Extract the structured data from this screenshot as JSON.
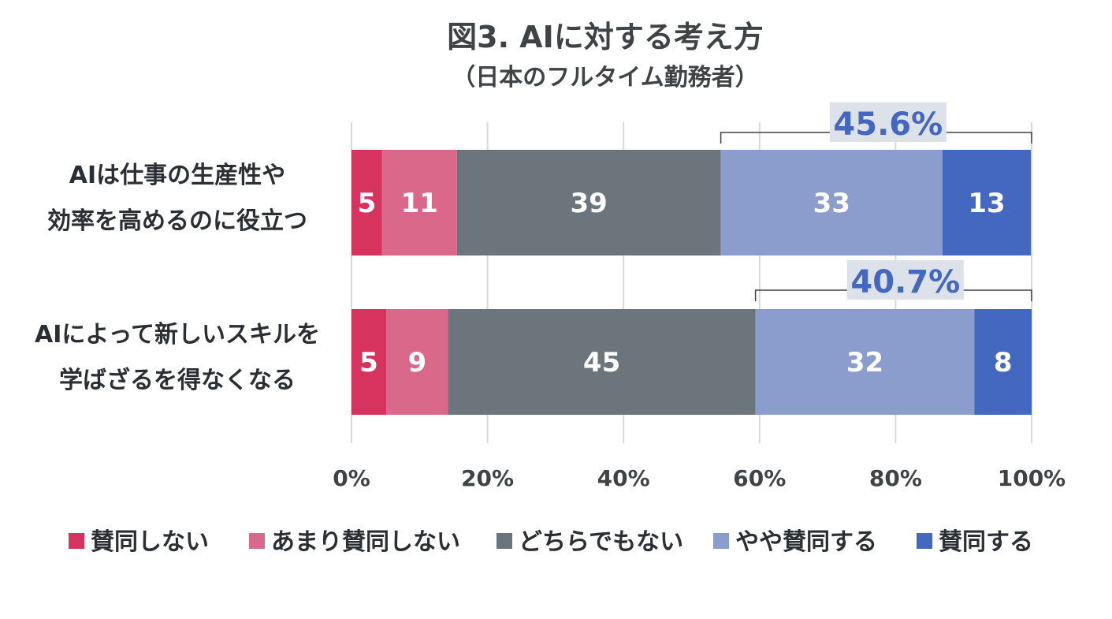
{
  "title": "図3. AIに対する考え方",
  "subtitle": "（日本のフルタイム勤務者）",
  "chart_data": {
    "type": "bar",
    "orientation": "horizontal",
    "stacked": true,
    "normalized_percent": true,
    "categories": [
      [
        "AIは仕事の生産性や",
        "効率を高めるのに役立つ"
      ],
      [
        "AIによって新しいスキルを",
        "学ばざるを得なくなる"
      ]
    ],
    "series": [
      {
        "name": "賛同しない",
        "values": [
          5,
          5
        ],
        "color": "#d6335f"
      },
      {
        "name": "あまり賛同しない",
        "values": [
          11,
          9
        ],
        "color": "#d9688a"
      },
      {
        "name": "どちらでもない",
        "values": [
          39,
          45
        ],
        "color": "#6b757b"
      },
      {
        "name": "やや賛同する",
        "values": [
          33,
          32
        ],
        "color": "#8a9dcd"
      },
      {
        "name": "賛同する",
        "values": [
          13,
          8
        ],
        "color": "#4468c0"
      }
    ],
    "shares_percent": [
      [
        4.5,
        11.0,
        38.8,
        32.6,
        13.0
      ],
      [
        5.1,
        9.1,
        45.2,
        32.2,
        8.4
      ]
    ],
    "bracket_labels": [
      "45.6%",
      "40.7%"
    ],
    "xlim": [
      0,
      100
    ],
    "xticks": [
      "0%",
      "20%",
      "40%",
      "60%",
      "80%",
      "100%"
    ],
    "grid": true,
    "legend_position": "bottom"
  }
}
